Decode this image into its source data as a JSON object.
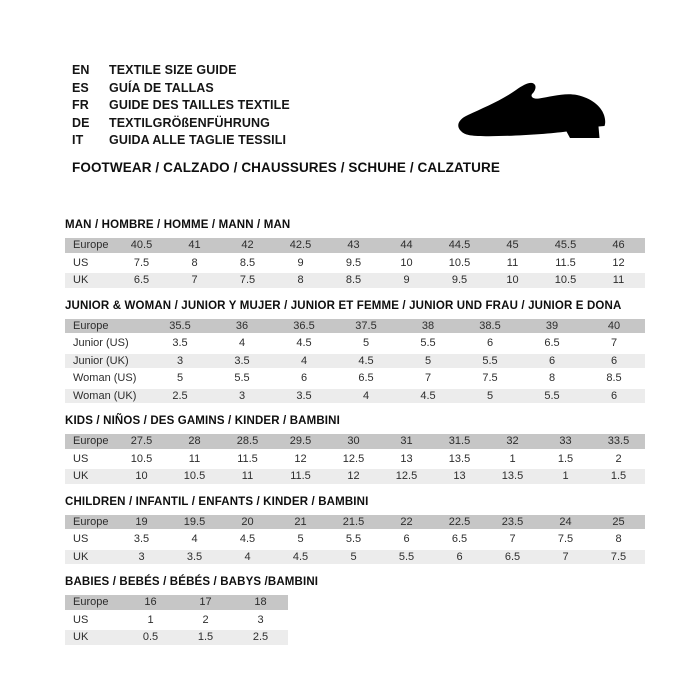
{
  "header": {
    "languages": [
      {
        "code": "EN",
        "label": "TEXTILE SIZE GUIDE"
      },
      {
        "code": "ES",
        "label": "GUÍA DE TALLAS"
      },
      {
        "code": "FR",
        "label": "GUIDE DES TAILLES TEXTILE"
      },
      {
        "code": "DE",
        "label": "TEXTILGRÖßENFÜHRUNG"
      },
      {
        "code": "IT",
        "label": "GUIDA ALLE TAGLIE TESSILI"
      }
    ],
    "shoe_icon": "dress-shoe-silhouette",
    "category_heading": "FOOTWEAR / CALZADO / CHAUSSURES / SCHUHE / CALZATURE"
  },
  "colors": {
    "header_row_bg": "#c6c6c6",
    "alt_row_bg": "#ececec",
    "plain_row_bg": "#ffffff",
    "text": "#2d2d2d",
    "title_text": "#0f0f0f",
    "shoe_fill": "#000000"
  },
  "sections": [
    {
      "title": "MAN / HOMBRE / HOMME / MANN / MAN",
      "rows": [
        {
          "label": "Europe",
          "values": [
            "40.5",
            "41",
            "42",
            "42.5",
            "43",
            "44",
            "44.5",
            "45",
            "45.5",
            "46"
          ]
        },
        {
          "label": "US",
          "values": [
            "7.5",
            "8",
            "8.5",
            "9",
            "9.5",
            "10",
            "10.5",
            "11",
            "11.5",
            "12"
          ]
        },
        {
          "label": "UK",
          "values": [
            "6.5",
            "7",
            "7.5",
            "8",
            "8.5",
            "9",
            "9.5",
            "10",
            "10.5",
            "11"
          ]
        }
      ]
    },
    {
      "title": "JUNIOR & WOMAN / JUNIOR Y MUJER / JUNIOR ET FEMME / JUNIOR UND FRAU / JUNIOR E DONA",
      "rows": [
        {
          "label": "Europe",
          "values": [
            "35.5",
            "36",
            "36.5",
            "37.5",
            "38",
            "38.5",
            "39",
            "40"
          ]
        },
        {
          "label": "Junior (US)",
          "values": [
            "3.5",
            "4",
            "4.5",
            "5",
            "5.5",
            "6",
            "6.5",
            "7"
          ]
        },
        {
          "label": "Junior (UK)",
          "values": [
            "3",
            "3.5",
            "4",
            "4.5",
            "5",
            "5.5",
            "6",
            "6"
          ]
        },
        {
          "label": "Woman (US)",
          "values": [
            "5",
            "5.5",
            "6",
            "6.5",
            "7",
            "7.5",
            "8",
            "8.5"
          ]
        },
        {
          "label": "Woman (UK)",
          "values": [
            "2.5",
            "3",
            "3.5",
            "4",
            "4.5",
            "5",
            "5.5",
            "6"
          ]
        }
      ]
    },
    {
      "title": "KIDS / NIÑOS / DES GAMINS / KINDER / BAMBINI",
      "rows": [
        {
          "label": "Europe",
          "values": [
            "27.5",
            "28",
            "28.5",
            "29.5",
            "30",
            "31",
            "31.5",
            "32",
            "33",
            "33.5"
          ]
        },
        {
          "label": "US",
          "values": [
            "10.5",
            "11",
            "11.5",
            "12",
            "12.5",
            "13",
            "13.5",
            "1",
            "1.5",
            "2"
          ]
        },
        {
          "label": "UK",
          "values": [
            "10",
            "10.5",
            "11",
            "11.5",
            "12",
            "12.5",
            "13",
            "13.5",
            "1",
            "1.5"
          ]
        }
      ]
    },
    {
      "title": "CHILDREN / INFANTIL / ENFANTS / KINDER / BAMBINI",
      "rows": [
        {
          "label": "Europe",
          "values": [
            "19",
            "19.5",
            "20",
            "21",
            "21.5",
            "22",
            "22.5",
            "23.5",
            "24",
            "25"
          ]
        },
        {
          "label": "US",
          "values": [
            "3.5",
            "4",
            "4.5",
            "5",
            "5.5",
            "6",
            "6.5",
            "7",
            "7.5",
            "8"
          ]
        },
        {
          "label": "UK",
          "values": [
            "3",
            "3.5",
            "4",
            "4.5",
            "5",
            "5.5",
            "6",
            "6.5",
            "7",
            "7.5"
          ]
        }
      ]
    },
    {
      "title": "BABIES  / BEBÉS / BÉBÉS / BABYS /BAMBINI",
      "rows": [
        {
          "label": "Europe",
          "values": [
            "16",
            "17",
            "18"
          ]
        },
        {
          "label": "US",
          "values": [
            "1",
            "2",
            "3"
          ]
        },
        {
          "label": "UK",
          "values": [
            "0.5",
            "1.5",
            "2.5"
          ]
        }
      ]
    }
  ]
}
